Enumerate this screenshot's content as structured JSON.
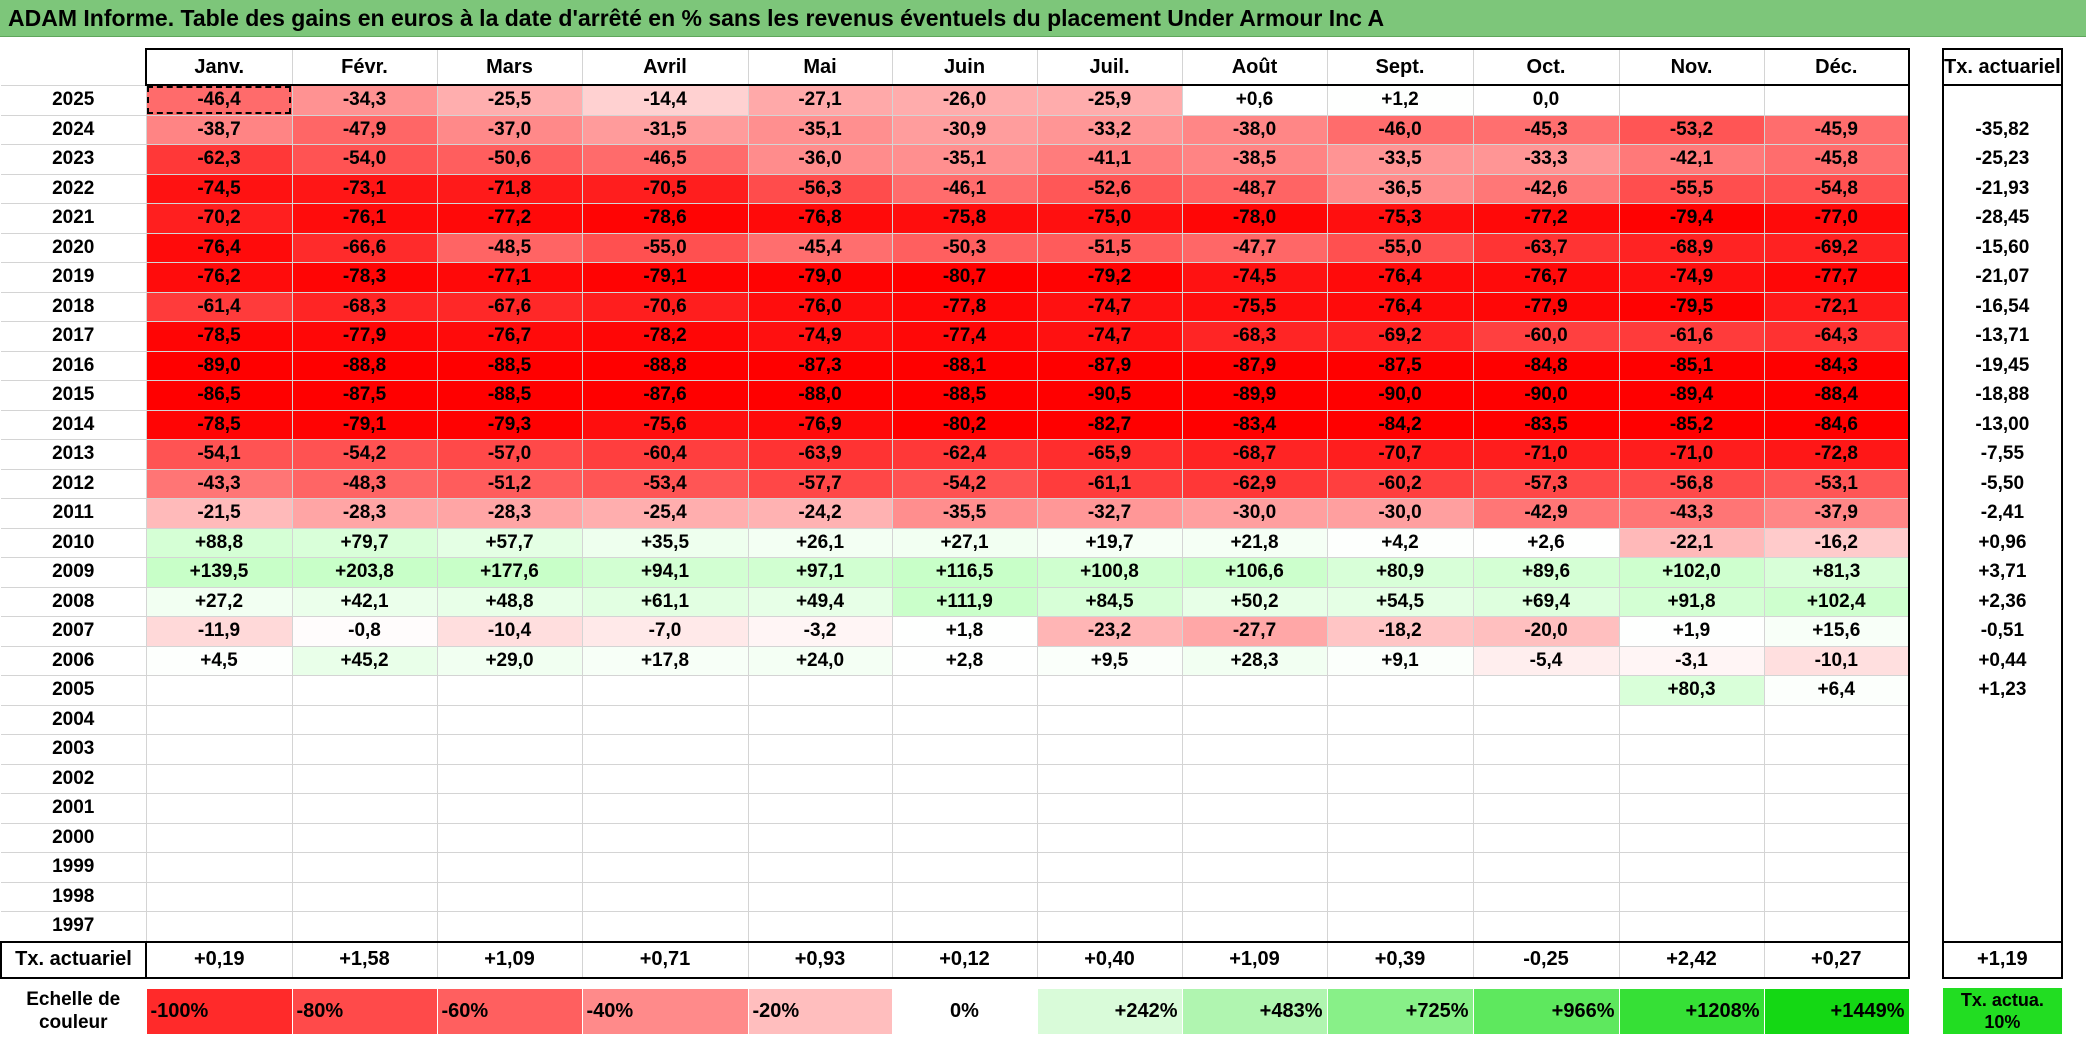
{
  "title": "ADAM Informe. Table des gains en euros à la date d'arrêté en % sans les revenus éventuels du placement Under Armour Inc A",
  "months": [
    "Janv.",
    "Févr.",
    "Mars",
    "Avril",
    "Mai",
    "Juin",
    "Juil.",
    "Août",
    "Sept.",
    "Oct.",
    "Nov.",
    "Déc."
  ],
  "rate_header": "Tx. actuariel",
  "rows": [
    {
      "year": "2025",
      "values": [
        "-46,4",
        "-34,3",
        "-25,5",
        "-14,4",
        "-27,1",
        "-26,0",
        "-25,9",
        "+0,6",
        "+1,2",
        "0,0",
        "",
        ""
      ],
      "rate": ""
    },
    {
      "year": "2024",
      "values": [
        "-38,7",
        "-47,9",
        "-37,0",
        "-31,5",
        "-35,1",
        "-30,9",
        "-33,2",
        "-38,0",
        "-46,0",
        "-45,3",
        "-53,2",
        "-45,9"
      ],
      "rate": "-35,82"
    },
    {
      "year": "2023",
      "values": [
        "-62,3",
        "-54,0",
        "-50,6",
        "-46,5",
        "-36,0",
        "-35,1",
        "-41,1",
        "-38,5",
        "-33,5",
        "-33,3",
        "-42,1",
        "-45,8"
      ],
      "rate": "-25,23"
    },
    {
      "year": "2022",
      "values": [
        "-74,5",
        "-73,1",
        "-71,8",
        "-70,5",
        "-56,3",
        "-46,1",
        "-52,6",
        "-48,7",
        "-36,5",
        "-42,6",
        "-55,5",
        "-54,8"
      ],
      "rate": "-21,93"
    },
    {
      "year": "2021",
      "values": [
        "-70,2",
        "-76,1",
        "-77,2",
        "-78,6",
        "-76,8",
        "-75,8",
        "-75,0",
        "-78,0",
        "-75,3",
        "-77,2",
        "-79,4",
        "-77,0"
      ],
      "rate": "-28,45"
    },
    {
      "year": "2020",
      "values": [
        "-76,4",
        "-66,6",
        "-48,5",
        "-55,0",
        "-45,4",
        "-50,3",
        "-51,5",
        "-47,7",
        "-55,0",
        "-63,7",
        "-68,9",
        "-69,2"
      ],
      "rate": "-15,60"
    },
    {
      "year": "2019",
      "values": [
        "-76,2",
        "-78,3",
        "-77,1",
        "-79,1",
        "-79,0",
        "-80,7",
        "-79,2",
        "-74,5",
        "-76,4",
        "-76,7",
        "-74,9",
        "-77,7"
      ],
      "rate": "-21,07"
    },
    {
      "year": "2018",
      "values": [
        "-61,4",
        "-68,3",
        "-67,6",
        "-70,6",
        "-76,0",
        "-77,8",
        "-74,7",
        "-75,5",
        "-76,4",
        "-77,9",
        "-79,5",
        "-72,1"
      ],
      "rate": "-16,54"
    },
    {
      "year": "2017",
      "values": [
        "-78,5",
        "-77,9",
        "-76,7",
        "-78,2",
        "-74,9",
        "-77,4",
        "-74,7",
        "-68,3",
        "-69,2",
        "-60,0",
        "-61,6",
        "-64,3"
      ],
      "rate": "-13,71"
    },
    {
      "year": "2016",
      "values": [
        "-89,0",
        "-88,8",
        "-88,5",
        "-88,8",
        "-87,3",
        "-88,1",
        "-87,9",
        "-87,9",
        "-87,5",
        "-84,8",
        "-85,1",
        "-84,3"
      ],
      "rate": "-19,45"
    },
    {
      "year": "2015",
      "values": [
        "-86,5",
        "-87,5",
        "-88,5",
        "-87,6",
        "-88,0",
        "-88,5",
        "-90,5",
        "-89,9",
        "-90,0",
        "-90,0",
        "-89,4",
        "-88,4"
      ],
      "rate": "-18,88"
    },
    {
      "year": "2014",
      "values": [
        "-78,5",
        "-79,1",
        "-79,3",
        "-75,6",
        "-76,9",
        "-80,2",
        "-82,7",
        "-83,4",
        "-84,2",
        "-83,5",
        "-85,2",
        "-84,6"
      ],
      "rate": "-13,00"
    },
    {
      "year": "2013",
      "values": [
        "-54,1",
        "-54,2",
        "-57,0",
        "-60,4",
        "-63,9",
        "-62,4",
        "-65,9",
        "-68,7",
        "-70,7",
        "-71,0",
        "-71,0",
        "-72,8"
      ],
      "rate": "-7,55"
    },
    {
      "year": "2012",
      "values": [
        "-43,3",
        "-48,3",
        "-51,2",
        "-53,4",
        "-57,7",
        "-54,2",
        "-61,1",
        "-62,9",
        "-60,2",
        "-57,3",
        "-56,8",
        "-53,1"
      ],
      "rate": "-5,50"
    },
    {
      "year": "2011",
      "values": [
        "-21,5",
        "-28,3",
        "-28,3",
        "-25,4",
        "-24,2",
        "-35,5",
        "-32,7",
        "-30,0",
        "-30,0",
        "-42,9",
        "-43,3",
        "-37,9"
      ],
      "rate": "-2,41"
    },
    {
      "year": "2010",
      "values": [
        "+88,8",
        "+79,7",
        "+57,7",
        "+35,5",
        "+26,1",
        "+27,1",
        "+19,7",
        "+21,8",
        "+4,2",
        "+2,6",
        "-22,1",
        "-16,2"
      ],
      "rate": "+0,96"
    },
    {
      "year": "2009",
      "values": [
        "+139,5",
        "+203,8",
        "+177,6",
        "+94,1",
        "+97,1",
        "+116,5",
        "+100,8",
        "+106,6",
        "+80,9",
        "+89,6",
        "+102,0",
        "+81,3"
      ],
      "rate": "+3,71"
    },
    {
      "year": "2008",
      "values": [
        "+27,2",
        "+42,1",
        "+48,8",
        "+61,1",
        "+49,4",
        "+111,9",
        "+84,5",
        "+50,2",
        "+54,5",
        "+69,4",
        "+91,8",
        "+102,4"
      ],
      "rate": "+2,36"
    },
    {
      "year": "2007",
      "values": [
        "-11,9",
        "-0,8",
        "-10,4",
        "-7,0",
        "-3,2",
        "+1,8",
        "-23,2",
        "-27,7",
        "-18,2",
        "-20,0",
        "+1,9",
        "+15,6"
      ],
      "rate": "-0,51"
    },
    {
      "year": "2006",
      "values": [
        "+4,5",
        "+45,2",
        "+29,0",
        "+17,8",
        "+24,0",
        "+2,8",
        "+9,5",
        "+28,3",
        "+9,1",
        "-5,4",
        "-3,1",
        "-10,1"
      ],
      "rate": "+0,44"
    },
    {
      "year": "2005",
      "values": [
        "",
        "",
        "",
        "",
        "",
        "",
        "",
        "",
        "",
        "",
        "+80,3",
        "+6,4"
      ],
      "rate": "+1,23"
    },
    {
      "year": "2004",
      "values": [
        "",
        "",
        "",
        "",
        "",
        "",
        "",
        "",
        "",
        "",
        "",
        ""
      ],
      "rate": ""
    },
    {
      "year": "2003",
      "values": [
        "",
        "",
        "",
        "",
        "",
        "",
        "",
        "",
        "",
        "",
        "",
        ""
      ],
      "rate": ""
    },
    {
      "year": "2002",
      "values": [
        "",
        "",
        "",
        "",
        "",
        "",
        "",
        "",
        "",
        "",
        "",
        ""
      ],
      "rate": ""
    },
    {
      "year": "2001",
      "values": [
        "",
        "",
        "",
        "",
        "",
        "",
        "",
        "",
        "",
        "",
        "",
        ""
      ],
      "rate": ""
    },
    {
      "year": "2000",
      "values": [
        "",
        "",
        "",
        "",
        "",
        "",
        "",
        "",
        "",
        "",
        "",
        ""
      ],
      "rate": ""
    },
    {
      "year": "1999",
      "values": [
        "",
        "",
        "",
        "",
        "",
        "",
        "",
        "",
        "",
        "",
        "",
        ""
      ],
      "rate": ""
    },
    {
      "year": "1998",
      "values": [
        "",
        "",
        "",
        "",
        "",
        "",
        "",
        "",
        "",
        "",
        "",
        ""
      ],
      "rate": ""
    },
    {
      "year": "1997",
      "values": [
        "",
        "",
        "",
        "",
        "",
        "",
        "",
        "",
        "",
        "",
        "",
        ""
      ],
      "rate": ""
    }
  ],
  "totals": {
    "label": "Tx. actuariel",
    "values": [
      "+0,19",
      "+1,58",
      "+1,09",
      "+0,71",
      "+0,93",
      "+0,12",
      "+0,40",
      "+1,09",
      "+0,39",
      "-0,25",
      "+2,42",
      "+0,27"
    ],
    "overall": "+1,19"
  },
  "legend": {
    "label": "Echelle de couleur",
    "steps": [
      "-100%",
      "-80%",
      "-60%",
      "-40%",
      "-20%",
      "0%",
      "+242%",
      "+483%",
      "+725%",
      "+966%",
      "+1208%",
      "+1449%"
    ],
    "step_colors": [
      "#ff2a2a",
      "#ff4a4a",
      "#ff5f5f",
      "#ff8a8a",
      "#ffbebe",
      "#ffffff",
      "#d9fbd9",
      "#b0f5b0",
      "#88f088",
      "#5ee85e",
      "#36e036",
      "#14d814"
    ],
    "rate_note": "Tx. actua. 10%",
    "rate_note_color": "#22dd22"
  },
  "colors": {
    "title_bar": "#7dc67a",
    "negative_max": "#ff0000",
    "positive_max": "#00ff00"
  }
}
